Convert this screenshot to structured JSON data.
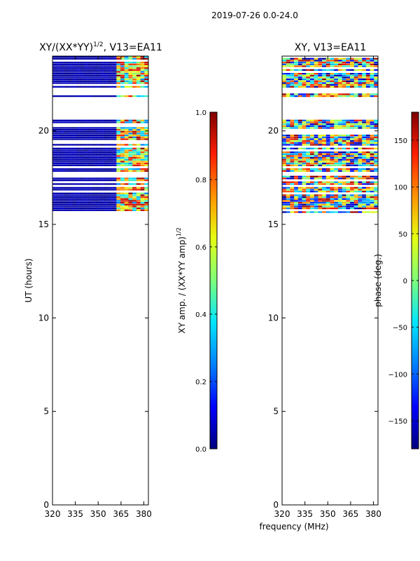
{
  "figure": {
    "suptitle": "2019-07-26 0.0-24.0",
    "shared_xlabel": "frequency (MHz)"
  },
  "colors": {
    "jet": [
      "#00007f",
      "#0000ff",
      "#0080ff",
      "#00e5ff",
      "#7dff7a",
      "#e5ff12",
      "#ff9400",
      "#ff1d00",
      "#7f0000"
    ],
    "data_band_blue": "#00008f"
  },
  "chart_data": [
    {
      "type": "heatmap",
      "title": "XY/(XX*YY)",
      "title_superscript": "1/2",
      "title_suffix": ", V13=EA11",
      "xlabel": "",
      "ylabel": "UT (hours)",
      "xlim": [
        320,
        383
      ],
      "ylim": [
        0,
        24
      ],
      "xticks": [
        320,
        335,
        350,
        365,
        380
      ],
      "yticks": [
        0,
        5,
        10,
        15,
        20
      ],
      "data_extent_hours": [
        15.6,
        24.0
      ],
      "colorbar": {
        "label": "XY amp. / (XX*YY amp)",
        "label_superscript": "1/2",
        "range": [
          0.0,
          1.0
        ],
        "ticks": [
          0.0,
          0.2,
          0.4,
          0.6,
          0.8,
          1.0
        ]
      }
    },
    {
      "type": "heatmap",
      "title": "XY, V13=EA11",
      "xlabel": "frequency (MHz)",
      "ylabel": "",
      "xlim": [
        320,
        383
      ],
      "ylim": [
        0,
        24
      ],
      "xticks": [
        320,
        335,
        350,
        365,
        380
      ],
      "yticks": [
        0,
        5,
        10,
        15,
        20
      ],
      "data_extent_hours": [
        15.6,
        24.0
      ],
      "colorbar": {
        "label": "phase (deg.)",
        "range": [
          -180,
          180
        ],
        "ticks": [
          -150,
          -100,
          -50,
          0,
          50,
          100,
          150
        ]
      }
    }
  ]
}
